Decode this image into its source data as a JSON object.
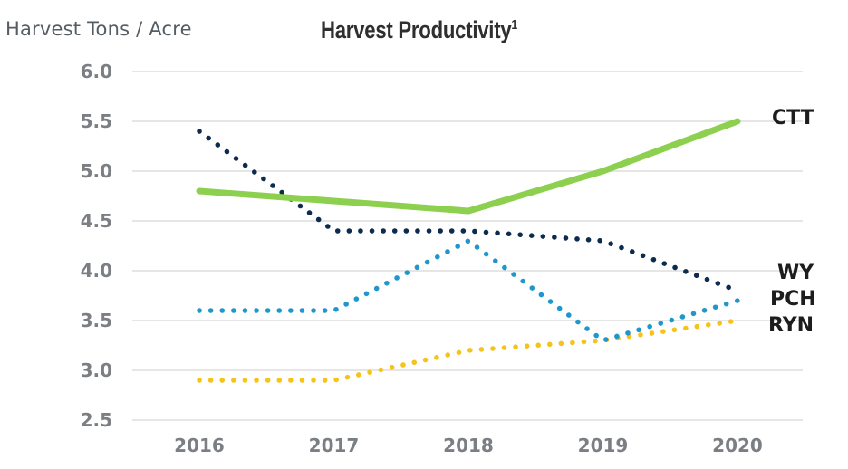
{
  "chart_data": {
    "type": "line",
    "title": "Harvest Productivity",
    "title_footnote": "1",
    "ylabel": "Harvest Tons / Acre",
    "xlabel": "",
    "x": [
      "2016",
      "2017",
      "2018",
      "2019",
      "2020"
    ],
    "ylim": [
      2.5,
      6.0
    ],
    "yticks": [
      "2.5",
      "3.0",
      "3.5",
      "4.0",
      "4.5",
      "5.0",
      "5.5",
      "6.0"
    ],
    "grid": true,
    "series": [
      {
        "name": "CTT",
        "values": [
          4.8,
          4.7,
          4.6,
          5.0,
          5.5
        ],
        "color": "#8dcf4f",
        "style": "solid"
      },
      {
        "name": "WY",
        "values": [
          5.4,
          4.4,
          4.4,
          4.3,
          3.8
        ],
        "color": "#0d2b4e",
        "style": "dotted"
      },
      {
        "name": "PCH",
        "values": [
          3.6,
          3.6,
          4.3,
          3.3,
          3.7
        ],
        "color": "#1f97cc",
        "style": "dotted"
      },
      {
        "name": "RYN",
        "values": [
          2.9,
          2.9,
          3.2,
          3.3,
          3.5
        ],
        "color": "#f5c319",
        "style": "dotted"
      }
    ]
  }
}
